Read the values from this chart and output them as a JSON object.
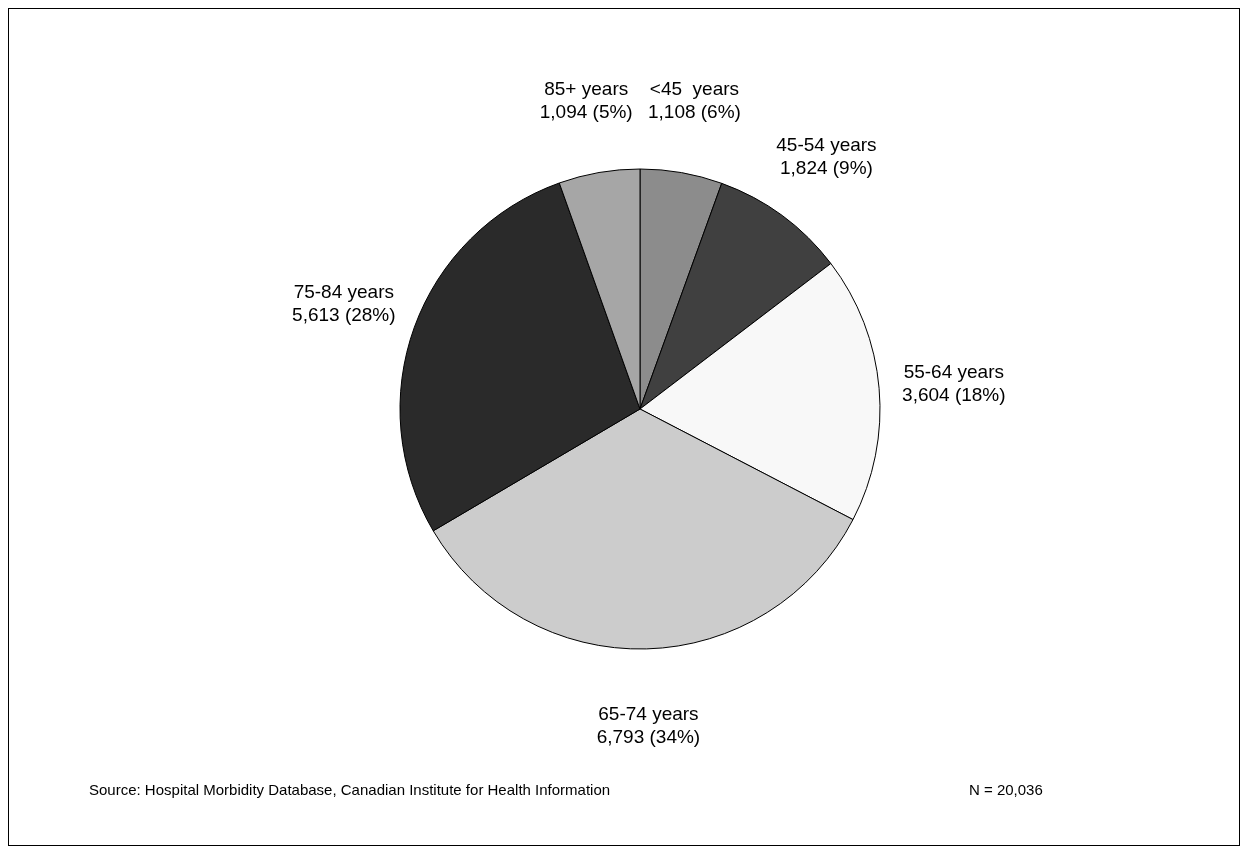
{
  "chart_data": {
    "type": "pie",
    "categories": [
      "<45  years",
      "45-54 years",
      "55-64 years",
      "65-74 years",
      "75-84 years",
      "85+ years"
    ],
    "values": [
      1108,
      1824,
      3604,
      6793,
      5613,
      1094
    ],
    "value_labels": [
      "1,108 (6%)",
      "1,824 (9%)",
      "3,604 (18%)",
      "6,793 (34%)",
      "5,613 (28%)",
      "1,094 (5%)"
    ],
    "colors": [
      "#8c8c8c",
      "#404040",
      "#f8f8f8",
      "#cccccc",
      "#2a2a2a",
      "#a6a6a6"
    ],
    "annotations": [
      "Source: Hospital Morbidity Database, Canadian Institute for Health Information",
      "N = 20,036"
    ]
  }
}
